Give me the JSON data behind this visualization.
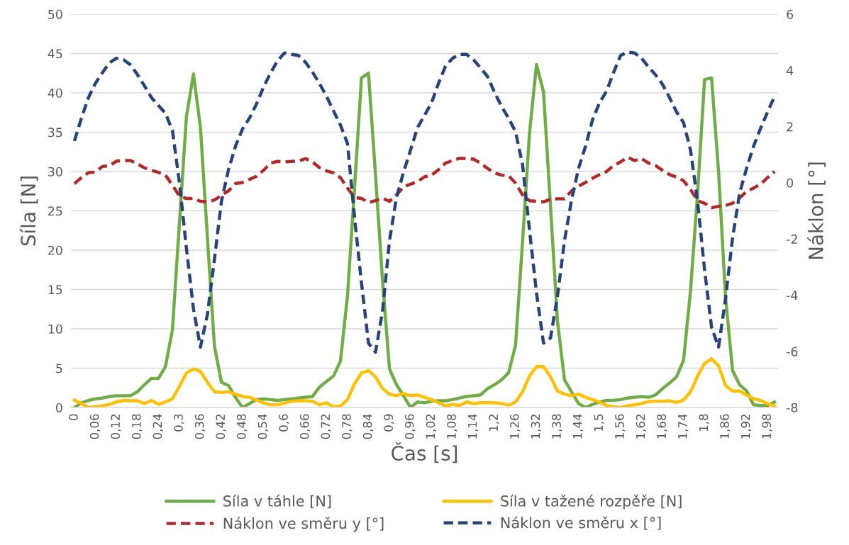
{
  "chart_data": {
    "type": "line",
    "xlabel": "Čas [s]",
    "ylabel": "Síla [N]",
    "y2label": "Náklon [°]",
    "categories": [
      "0",
      null,
      null,
      "0,06",
      null,
      null,
      "0,12",
      null,
      null,
      "0,18",
      null,
      null,
      "0,24",
      null,
      null,
      "0,3",
      null,
      null,
      "0,36",
      null,
      null,
      "0,42",
      null,
      null,
      "0,48",
      null,
      null,
      "0,54",
      null,
      null,
      "0,6",
      null,
      null,
      "0,66",
      null,
      null,
      "0,72",
      null,
      null,
      "0,78",
      null,
      null,
      "0,84",
      null,
      null,
      "0,9",
      null,
      null,
      "0,96",
      null,
      null,
      "1,02",
      null,
      null,
      "1,08",
      null,
      null,
      "1,14",
      null,
      null,
      "1,2",
      null,
      null,
      "1,26",
      null,
      null,
      "1,32",
      null,
      null,
      "1,38",
      null,
      null,
      "1,44",
      null,
      null,
      "1,5",
      null,
      null,
      "1,56",
      null,
      null,
      "1,62",
      null,
      null,
      "1,68",
      null,
      null,
      "1,74",
      null,
      null,
      "1,8",
      null,
      null,
      "1,86",
      null,
      null,
      "1,92",
      null,
      null,
      "1,98",
      null
    ],
    "ylim": [
      0,
      50
    ],
    "yticks": [
      0,
      5,
      10,
      15,
      20,
      25,
      30,
      35,
      40,
      45,
      50
    ],
    "y2lim": [
      -8,
      6
    ],
    "y2ticks": [
      -8,
      -6,
      -4,
      -2,
      0,
      2,
      4,
      6
    ],
    "grid": "y",
    "legend": "bottom",
    "marker": "none",
    "series": [
      {
        "name": "Síla v táhle [N]",
        "color": "#70ad47",
        "line_style": "solid",
        "values": [
          0,
          0.6,
          0.9,
          1.1,
          1.2,
          1.4,
          1.5,
          1.5,
          1.5,
          2.0,
          2.9,
          3.7,
          3.7,
          5.2,
          9.9,
          23.5,
          37,
          42.4,
          35.6,
          21.5,
          7.8,
          3.2,
          2.8,
          1.3,
          0,
          0.5,
          1.0,
          1.1,
          1.0,
          0.9,
          1.0,
          1.1,
          1.2,
          1.3,
          1.4,
          2.6,
          3.3,
          4.0,
          5.9,
          14.2,
          27.8,
          41.9,
          42.5,
          29.6,
          16.2,
          4.9,
          2.9,
          1.5,
          0,
          0.7,
          0.6,
          0.8,
          0.85,
          0.85,
          1.0,
          1.2,
          1.4,
          1.5,
          1.6,
          2.4,
          2.9,
          3.5,
          4.4,
          7.9,
          21,
          34.9,
          43.6,
          40.1,
          25.5,
          10.9,
          3.5,
          2.0,
          0.5,
          0,
          0.4,
          0.7,
          0.9,
          0.9,
          1.0,
          1.2,
          1.3,
          1.4,
          1.3,
          1.6,
          2.4,
          3.1,
          3.9,
          6.0,
          14.9,
          27.2,
          41.7,
          41.9,
          30,
          14,
          4.7,
          2.9,
          2.1,
          0.35,
          0.25,
          0.25,
          0.7
        ]
      },
      {
        "name": "Síla v tažené rozpěře [N]",
        "color": "#ffc000",
        "line_style": "solid",
        "values": [
          0.95,
          0.5,
          0,
          0.1,
          0.2,
          0.4,
          0.7,
          0.9,
          0.85,
          0.85,
          0.5,
          0.9,
          0.4,
          0.7,
          1.1,
          2.7,
          4.4,
          4.9,
          4.6,
          3.2,
          2.0,
          1.9,
          2.0,
          1.7,
          1.4,
          1.3,
          0.95,
          0.6,
          0.35,
          0.35,
          0.55,
          0.8,
          0.85,
          0.85,
          0.8,
          0.35,
          0.6,
          0.1,
          0.2,
          1.0,
          3.0,
          4.4,
          4.7,
          3.9,
          2.4,
          1.7,
          1.5,
          1.8,
          1.5,
          1.6,
          1.3,
          1.0,
          0.6,
          0.2,
          0.4,
          0.25,
          0.7,
          0.5,
          0.6,
          0.6,
          0.6,
          0.5,
          0.3,
          0.7,
          2.0,
          4.0,
          5.2,
          5.2,
          3.9,
          2.1,
          1.7,
          1.5,
          1.7,
          1.3,
          1.0,
          0.7,
          0.25,
          0.1,
          0,
          0.2,
          0.35,
          0.5,
          0.75,
          0.8,
          0.8,
          0.85,
          0.65,
          0.95,
          2.0,
          4.0,
          5.6,
          6.2,
          5.3,
          2.8,
          2.1,
          2.1,
          1.6,
          1.1,
          0.9,
          0.5,
          0.2
        ]
      },
      {
        "name": "Náklon ve směru y [°]",
        "color": "#b5282a",
        "line_style": "dashed",
        "axis": "y2",
        "values": [
          -0.03,
          0.18,
          0.36,
          0.38,
          0.58,
          0.6,
          0.77,
          0.79,
          0.79,
          0.67,
          0.53,
          0.44,
          0.37,
          0.27,
          -0.09,
          -0.47,
          -0.56,
          -0.56,
          -0.66,
          -0.68,
          -0.61,
          -0.45,
          -0.29,
          -0.03,
          0.01,
          0.12,
          0.23,
          0.44,
          0.7,
          0.76,
          0.74,
          0.76,
          0.77,
          0.86,
          0.74,
          0.54,
          0.42,
          0.35,
          0.18,
          -0.19,
          -0.52,
          -0.56,
          -0.7,
          -0.64,
          -0.55,
          -0.66,
          -0.43,
          -0.15,
          -0.05,
          0.04,
          0.21,
          0.27,
          0.46,
          0.7,
          0.79,
          0.87,
          0.86,
          0.84,
          0.7,
          0.51,
          0.35,
          0.27,
          0.25,
          -0.01,
          -0.43,
          -0.64,
          -0.66,
          -0.68,
          -0.59,
          -0.57,
          -0.57,
          -0.29,
          -0.12,
          0.01,
          0.16,
          0.29,
          0.4,
          0.61,
          0.74,
          0.91,
          0.79,
          0.86,
          0.7,
          0.61,
          0.44,
          0.29,
          0.2,
          0.07,
          -0.24,
          -0.64,
          -0.73,
          -0.89,
          -0.84,
          -0.81,
          -0.73,
          -0.54,
          -0.31,
          -0.19,
          -0.05,
          0.18,
          0.4
        ]
      },
      {
        "name": "Náklon ve směru x [°]",
        "color": "#264478",
        "line_style": "dashed",
        "axis": "y2",
        "values": [
          1.49,
          2.3,
          3.03,
          3.54,
          3.92,
          4.27,
          4.43,
          4.38,
          4.2,
          3.85,
          3.45,
          3.03,
          2.75,
          2.47,
          1.86,
          0.0,
          -2.34,
          -4.49,
          -5.85,
          -4.68,
          -2.72,
          -0.66,
          0.46,
          1.3,
          1.91,
          2.3,
          2.8,
          3.4,
          3.9,
          4.34,
          4.62,
          4.57,
          4.53,
          4.29,
          3.94,
          3.53,
          3.08,
          2.56,
          2.05,
          1.4,
          -1.22,
          -3.56,
          -5.71,
          -6.03,
          -4.58,
          -2.06,
          -0.52,
          0.37,
          1.16,
          1.96,
          2.4,
          2.84,
          3.54,
          4.15,
          4.43,
          4.57,
          4.57,
          4.38,
          4.09,
          3.78,
          3.22,
          2.72,
          2.3,
          1.82,
          0.65,
          -1.69,
          -3.93,
          -5.71,
          -5.52,
          -4.02,
          -2.06,
          -0.61,
          0.51,
          1.3,
          2.24,
          2.85,
          3.26,
          3.92,
          4.53,
          4.65,
          4.62,
          4.43,
          4.12,
          3.84,
          3.5,
          3.03,
          2.52,
          2.14,
          1.16,
          -0.66,
          -3.09,
          -5.15,
          -5.85,
          -4.12,
          -1.97,
          -0.38,
          0.51,
          1.3,
          1.94,
          2.52,
          3.08
        ]
      }
    ]
  }
}
